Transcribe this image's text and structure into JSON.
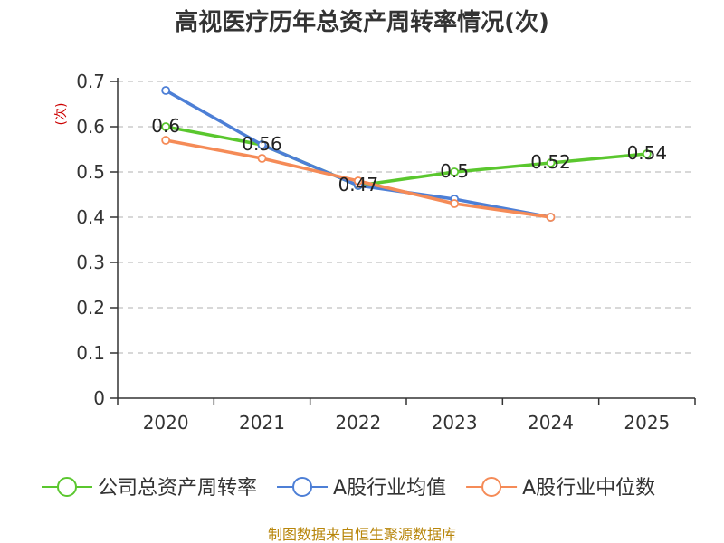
{
  "chart_data": {
    "type": "line",
    "title": "高视医疗历年总资产周转率情况(次)",
    "ylabel": "(次)",
    "xlabel": "",
    "categories": [
      "2020",
      "2021",
      "2022",
      "2023",
      "2024",
      "2025"
    ],
    "ylim": [
      0,
      0.7
    ],
    "yticks": [
      "0",
      "0.1",
      "0.2",
      "0.3",
      "0.4",
      "0.5",
      "0.6",
      "0.7"
    ],
    "grid": true,
    "legend_position": "bottom",
    "series": [
      {
        "name": "公司总资产周转率",
        "color": "#5ac72e",
        "values": [
          0.6,
          0.56,
          0.47,
          0.5,
          0.52,
          0.54
        ],
        "labels": [
          "0.6",
          "0.56",
          "0.47",
          "0.5",
          "0.52",
          "0.54"
        ]
      },
      {
        "name": "A股行业均值",
        "color": "#4d7fd6",
        "values": [
          0.68,
          0.56,
          0.47,
          0.44,
          0.4,
          null
        ]
      },
      {
        "name": "A股行业中位数",
        "color": "#f58b57",
        "values": [
          0.57,
          0.53,
          0.48,
          0.43,
          0.4,
          null
        ]
      }
    ],
    "source": "制图数据来自恒生聚源数据库"
  }
}
